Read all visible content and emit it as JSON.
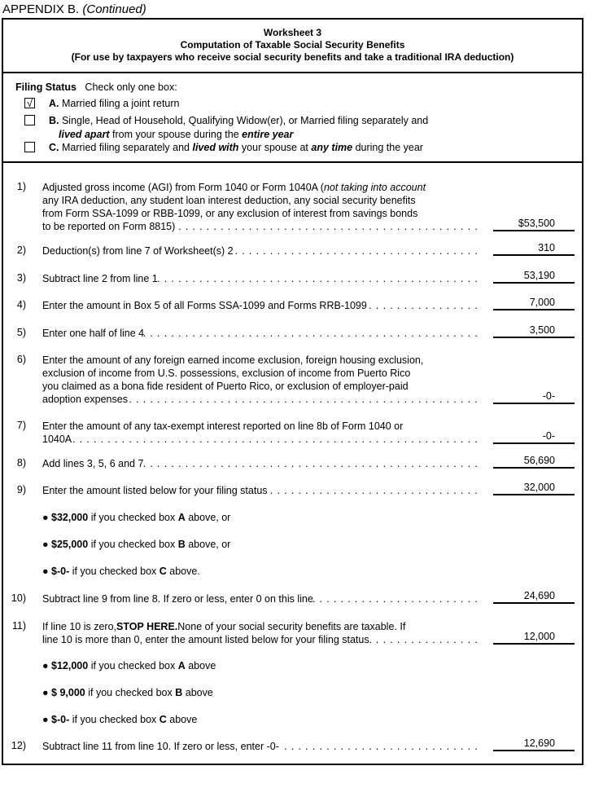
{
  "appendix": {
    "title": "APPENDIX B.",
    "continued": "(Continued)"
  },
  "header": {
    "worksheet": "Worksheet 3",
    "title": "Computation of Taxable Social Security Benefits",
    "subtitle": "(For use by taxpayers who receive social security benefits and take a traditional IRA deduction)"
  },
  "filing_status": {
    "label": "Filing Status",
    "instruction": "Check only one box:",
    "options": [
      {
        "checked": true,
        "check_mark": "√",
        "lines": [
          [
            {
              "t": "A.",
              "s": "b"
            },
            {
              "t": " Married filing a joint return"
            }
          ]
        ]
      },
      {
        "checked": false,
        "check_mark": "",
        "lines": [
          [
            {
              "t": "B.",
              "s": "b"
            },
            {
              "t": " Single, Head of Household, Qualifying Widow(er), or Married filing separately and"
            }
          ],
          [
            {
              "t": "lived apart",
              "s": "bi"
            },
            {
              "t": " from your spouse during the "
            },
            {
              "t": "entire year",
              "s": "bi"
            }
          ]
        ]
      },
      {
        "checked": false,
        "check_mark": "",
        "lines": [
          [
            {
              "t": "C.",
              "s": "b"
            },
            {
              "t": " Married filing separately and "
            },
            {
              "t": "lived with",
              "s": "bi"
            },
            {
              "t": " your spouse at "
            },
            {
              "t": "any time",
              "s": "bi"
            },
            {
              "t": " during the year"
            }
          ]
        ]
      }
    ]
  },
  "lines": [
    {
      "num": "1)",
      "lines": [
        [
          {
            "t": "Adjusted gross income (AGI) from Form 1040 or Form 1040A ("
          },
          {
            "t": "not taking into account",
            "s": "i"
          }
        ],
        [
          {
            "t": "any IRA deduction, any student loan interest deduction, any social security benefits"
          }
        ],
        [
          {
            "t": "from Form SSA-1099 or RBB-1099, or any exclusion of interest from savings bonds"
          }
        ],
        [
          {
            "t": "to be reported on Form 8815)"
          }
        ]
      ],
      "value": "$53,500"
    },
    {
      "num": "2)",
      "lines": [
        [
          {
            "t": "Deduction(s) from line 7 of Worksheet(s) 2"
          }
        ]
      ],
      "value": "310"
    },
    {
      "num": "3)",
      "lines": [
        [
          {
            "t": "Subtract line 2 from line 1"
          }
        ]
      ],
      "value": "53,190"
    },
    {
      "num": "4)",
      "lines": [
        [
          {
            "t": "Enter the amount in Box 5 of all Forms SSA-1099 and Forms RRB-1099"
          }
        ]
      ],
      "value": "7,000"
    },
    {
      "num": "5)",
      "lines": [
        [
          {
            "t": "Enter one half of line 4"
          }
        ]
      ],
      "value": "3,500"
    },
    {
      "num": "6)",
      "lines": [
        [
          {
            "t": "Enter the amount of any foreign earned income exclusion, foreign housing exclusion,"
          }
        ],
        [
          {
            "t": "exclusion of income from U.S. possessions, exclusion of income from Puerto Rico"
          }
        ],
        [
          {
            "t": "you claimed as a bona fide resident of Puerto Rico, or exclusion of employer-paid"
          }
        ],
        [
          {
            "t": "adoption expenses"
          }
        ]
      ],
      "value": "-0-"
    },
    {
      "num": "7)",
      "lines": [
        [
          {
            "t": "Enter the amount of any tax-exempt interest reported on line 8b of Form 1040 or"
          }
        ],
        [
          {
            "t": "1040A"
          }
        ]
      ],
      "value": "-0-"
    },
    {
      "num": "8)",
      "lines": [
        [
          {
            "t": "Add lines 3, 5, 6 and 7"
          }
        ]
      ],
      "value": "56,690"
    },
    {
      "num": "9)",
      "lines": [
        [
          {
            "t": "Enter the amount listed below for your filing status"
          }
        ]
      ],
      "value": "32,000"
    },
    {
      "bullet": [
        {
          "t": "● "
        },
        {
          "t": "$32,000",
          "s": "b"
        },
        {
          "t": " if you checked box "
        },
        {
          "t": "A",
          "s": "b"
        },
        {
          "t": " above, or"
        }
      ]
    },
    {
      "bullet": [
        {
          "t": "● "
        },
        {
          "t": "$25,000",
          "s": "b"
        },
        {
          "t": " if you checked box "
        },
        {
          "t": "B",
          "s": "b"
        },
        {
          "t": " above, or"
        }
      ]
    },
    {
      "bullet": [
        {
          "t": "● "
        },
        {
          "t": "$-0-",
          "s": "b"
        },
        {
          "t": " if you checked box "
        },
        {
          "t": "C",
          "s": "b"
        },
        {
          "t": " above."
        }
      ]
    },
    {
      "num": "10)",
      "lines": [
        [
          {
            "t": "Subtract line 9 from line 8. If zero or less, enter 0 on this line"
          }
        ]
      ],
      "value": "24,690"
    },
    {
      "num": "11)",
      "lines": [
        [
          {
            "t": "If line 10 is zero, "
          },
          {
            "t": "STOP HERE.",
            "s": "b"
          },
          {
            "t": " None of your social security benefits are taxable. If"
          }
        ],
        [
          {
            "t": "line 10 is more than 0, enter the amount listed below for your filing status"
          }
        ]
      ],
      "value": "12,000"
    },
    {
      "bullet": [
        {
          "t": "● "
        },
        {
          "t": "$12,000",
          "s": "b"
        },
        {
          "t": " if you checked box "
        },
        {
          "t": "A",
          "s": "b"
        },
        {
          "t": " above"
        }
      ]
    },
    {
      "bullet": [
        {
          "t": "● "
        },
        {
          "t": "$  9,000",
          "s": "b"
        },
        {
          "t": " if you checked box "
        },
        {
          "t": "B",
          "s": "b"
        },
        {
          "t": " above"
        }
      ]
    },
    {
      "bullet": [
        {
          "t": "● "
        },
        {
          "t": "$-0-",
          "s": "b"
        },
        {
          "t": " if you checked box "
        },
        {
          "t": "C",
          "s": "b"
        },
        {
          "t": " above"
        }
      ]
    },
    {
      "num": "12)",
      "lines": [
        [
          {
            "t": "Subtract line 11 from line 10. If zero or less, enter -0-"
          }
        ]
      ],
      "value": "12,690"
    }
  ]
}
